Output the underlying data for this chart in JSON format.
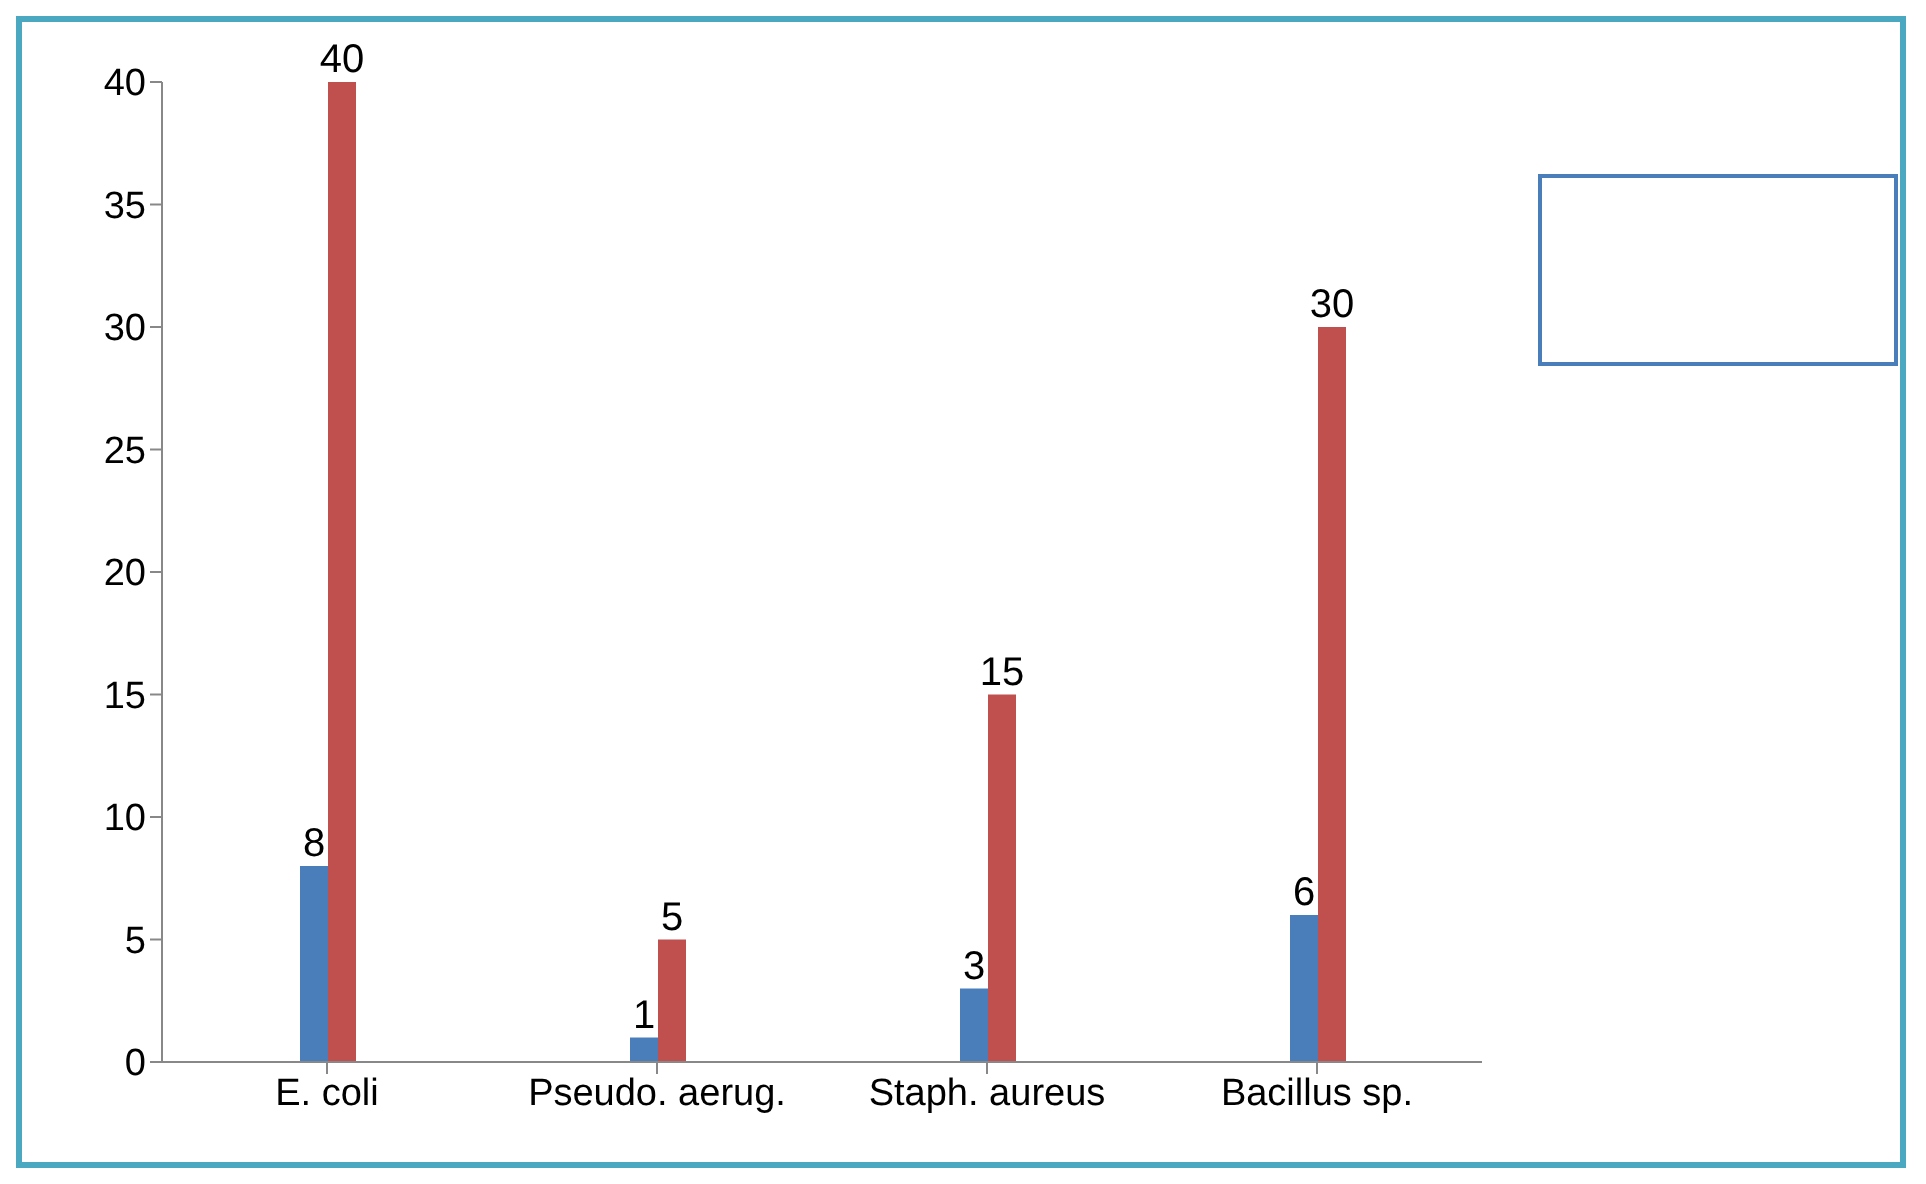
{
  "chart_data": {
    "type": "bar",
    "categories": [
      "E. coli",
      "Pseudo. aerug.",
      "Staph. aureus",
      "Bacillus sp."
    ],
    "series": [
      {
        "color": "#4a7ebb",
        "values": [
          8,
          1,
          3,
          6
        ]
      },
      {
        "color": "#c0504d",
        "values": [
          40,
          5,
          15,
          30
        ]
      }
    ],
    "ylim": [
      0,
      40
    ],
    "yticks": [
      0,
      5,
      10,
      15,
      20,
      25,
      30,
      35,
      40
    ],
    "data_labels": true,
    "grid": false,
    "legend": false
  }
}
